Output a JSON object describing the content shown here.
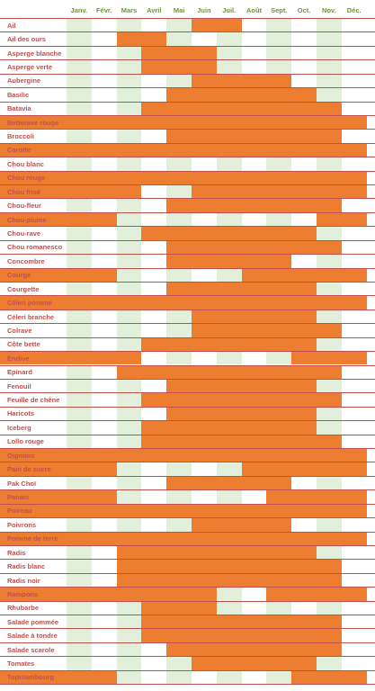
{
  "months": [
    "Janv.",
    "Févr.",
    "Mars",
    "Avril",
    "Mai",
    "Juin",
    "Juil.",
    "Août",
    "Sept.",
    "Oct.",
    "Nov.",
    "Déc."
  ],
  "colors": {
    "season": "#ed7d31",
    "alt_column": "#e2efda",
    "plain": "#ffffff",
    "label": "#c0504d",
    "header": "#6a9a36",
    "line": "#c0504d"
  },
  "rows": [
    {
      "name": "Ail",
      "season": [
        0,
        0,
        0,
        0,
        0,
        1,
        1,
        0,
        0,
        0,
        0,
        0
      ]
    },
    {
      "name": "Ail des ours",
      "season": [
        0,
        0,
        1,
        1,
        0,
        0,
        0,
        0,
        0,
        0,
        0,
        0
      ]
    },
    {
      "name": "Asperge blanche",
      "season": [
        0,
        0,
        0,
        1,
        1,
        1,
        0,
        0,
        0,
        0,
        0,
        0
      ]
    },
    {
      "name": "Asperge verte",
      "season": [
        0,
        0,
        0,
        1,
        1,
        1,
        0,
        0,
        0,
        0,
        0,
        0
      ]
    },
    {
      "name": "Aubergine",
      "season": [
        0,
        0,
        0,
        0,
        0,
        1,
        1,
        1,
        1,
        0,
        0,
        0
      ]
    },
    {
      "name": "Basilic",
      "season": [
        0,
        0,
        0,
        0,
        1,
        1,
        1,
        1,
        1,
        1,
        0,
        0
      ]
    },
    {
      "name": "Batavia",
      "season": [
        0,
        0,
        0,
        1,
        1,
        1,
        1,
        1,
        1,
        1,
        1,
        0
      ]
    },
    {
      "name": "Betterave rouge",
      "season": [
        1,
        1,
        1,
        1,
        1,
        1,
        1,
        1,
        1,
        1,
        1,
        1
      ]
    },
    {
      "name": "Broccoli",
      "season": [
        0,
        0,
        0,
        0,
        1,
        1,
        1,
        1,
        1,
        1,
        1,
        0
      ]
    },
    {
      "name": "Carotte",
      "season": [
        1,
        1,
        1,
        1,
        1,
        1,
        1,
        1,
        1,
        1,
        1,
        1
      ]
    },
    {
      "name": "Chou blanc",
      "season": [
        0,
        0,
        0,
        0,
        0,
        0,
        0,
        0,
        0,
        0,
        0,
        0
      ]
    },
    {
      "name": "Chou rouge",
      "season": [
        1,
        1,
        1,
        1,
        1,
        1,
        1,
        1,
        1,
        1,
        1,
        1
      ]
    },
    {
      "name": "Chou frisé",
      "season": [
        1,
        1,
        1,
        0,
        0,
        1,
        1,
        1,
        1,
        1,
        1,
        1
      ]
    },
    {
      "name": "Chou-fleur",
      "season": [
        0,
        0,
        0,
        0,
        1,
        1,
        1,
        1,
        1,
        1,
        1,
        0
      ]
    },
    {
      "name": "Chou-plume",
      "season": [
        1,
        1,
        0,
        0,
        0,
        0,
        0,
        0,
        0,
        0,
        1,
        1
      ]
    },
    {
      "name": "Chou-rave",
      "season": [
        0,
        0,
        0,
        1,
        1,
        1,
        1,
        1,
        1,
        1,
        0,
        0
      ]
    },
    {
      "name": "Chou romanesco",
      "season": [
        0,
        0,
        0,
        0,
        1,
        1,
        1,
        1,
        1,
        1,
        1,
        0
      ]
    },
    {
      "name": "Concombre",
      "season": [
        0,
        0,
        0,
        0,
        1,
        1,
        1,
        1,
        1,
        0,
        0,
        0
      ]
    },
    {
      "name": "Courge",
      "season": [
        1,
        1,
        0,
        0,
        0,
        0,
        0,
        1,
        1,
        1,
        1,
        1
      ]
    },
    {
      "name": "Courgette",
      "season": [
        0,
        0,
        0,
        0,
        1,
        1,
        1,
        1,
        1,
        1,
        0,
        0
      ]
    },
    {
      "name": "Céleri pomme",
      "season": [
        1,
        1,
        1,
        1,
        1,
        1,
        1,
        1,
        1,
        1,
        1,
        1
      ]
    },
    {
      "name": "Céleri branche",
      "season": [
        0,
        0,
        0,
        0,
        0,
        1,
        1,
        1,
        1,
        1,
        0,
        0
      ]
    },
    {
      "name": "Colrave",
      "season": [
        0,
        0,
        0,
        0,
        0,
        1,
        1,
        1,
        1,
        1,
        1,
        0
      ]
    },
    {
      "name": "Côte bette",
      "season": [
        0,
        0,
        0,
        1,
        1,
        1,
        1,
        1,
        1,
        1,
        0,
        0
      ]
    },
    {
      "name": "Endive",
      "season": [
        1,
        1,
        1,
        0,
        0,
        0,
        0,
        0,
        0,
        1,
        1,
        1
      ]
    },
    {
      "name": "Epinard",
      "season": [
        0,
        0,
        1,
        1,
        1,
        1,
        1,
        1,
        1,
        1,
        1,
        0
      ]
    },
    {
      "name": "Fenouil",
      "season": [
        0,
        0,
        0,
        0,
        1,
        1,
        1,
        1,
        1,
        1,
        0,
        0
      ]
    },
    {
      "name": "Feuille de chêne",
      "season": [
        0,
        0,
        0,
        1,
        1,
        1,
        1,
        1,
        1,
        1,
        1,
        0
      ]
    },
    {
      "name": "Haricots",
      "season": [
        0,
        0,
        0,
        0,
        1,
        1,
        1,
        1,
        1,
        1,
        0,
        0
      ]
    },
    {
      "name": "Iceberg",
      "season": [
        0,
        0,
        0,
        1,
        1,
        1,
        1,
        1,
        1,
        1,
        0,
        0
      ]
    },
    {
      "name": "Lollo rouge",
      "season": [
        0,
        0,
        0,
        1,
        1,
        1,
        1,
        1,
        1,
        1,
        1,
        0
      ]
    },
    {
      "name": "Oignons",
      "season": [
        1,
        1,
        1,
        1,
        1,
        1,
        1,
        1,
        1,
        1,
        1,
        1
      ]
    },
    {
      "name": "Pain de sucre",
      "season": [
        1,
        1,
        0,
        0,
        0,
        0,
        0,
        1,
        1,
        1,
        1,
        1
      ]
    },
    {
      "name": "Pak Choï",
      "season": [
        0,
        0,
        0,
        0,
        1,
        1,
        1,
        1,
        1,
        0,
        0,
        0
      ]
    },
    {
      "name": "Panais",
      "season": [
        1,
        1,
        0,
        0,
        0,
        0,
        0,
        0,
        1,
        1,
        1,
        1
      ]
    },
    {
      "name": "Poireau",
      "season": [
        1,
        1,
        1,
        1,
        1,
        1,
        1,
        1,
        1,
        1,
        1,
        1
      ]
    },
    {
      "name": "Poivrons",
      "season": [
        0,
        0,
        0,
        0,
        0,
        1,
        1,
        1,
        1,
        0,
        0,
        0
      ]
    },
    {
      "name": "Pomme de terre",
      "season": [
        1,
        1,
        1,
        1,
        1,
        1,
        1,
        1,
        1,
        1,
        1,
        1
      ]
    },
    {
      "name": "Radis",
      "season": [
        0,
        0,
        1,
        1,
        1,
        1,
        1,
        1,
        1,
        1,
        0,
        0
      ]
    },
    {
      "name": "Radis blanc",
      "season": [
        0,
        0,
        1,
        1,
        1,
        1,
        1,
        1,
        1,
        1,
        1,
        0
      ]
    },
    {
      "name": "Radis noir",
      "season": [
        0,
        0,
        1,
        1,
        1,
        1,
        1,
        1,
        1,
        1,
        1,
        0
      ]
    },
    {
      "name": "Rampons",
      "season": [
        1,
        1,
        1,
        1,
        1,
        1,
        0,
        0,
        1,
        1,
        1,
        1
      ]
    },
    {
      "name": "Rhubarbe",
      "season": [
        0,
        0,
        0,
        1,
        1,
        1,
        0,
        0,
        0,
        0,
        0,
        0
      ]
    },
    {
      "name": "Salade pommée",
      "season": [
        0,
        0,
        0,
        1,
        1,
        1,
        1,
        1,
        1,
        1,
        1,
        0
      ]
    },
    {
      "name": "Salade à tondre",
      "season": [
        0,
        0,
        0,
        1,
        1,
        1,
        1,
        1,
        1,
        1,
        1,
        0
      ]
    },
    {
      "name": "Salade scarole",
      "season": [
        0,
        0,
        0,
        0,
        1,
        1,
        1,
        1,
        1,
        1,
        1,
        0
      ]
    },
    {
      "name": "Tomates",
      "season": [
        0,
        0,
        0,
        0,
        0,
        1,
        1,
        1,
        1,
        1,
        0,
        0
      ]
    },
    {
      "name": "Topinambourg",
      "season": [
        1,
        1,
        0,
        0,
        0,
        0,
        0,
        0,
        0,
        1,
        1,
        1
      ]
    }
  ]
}
